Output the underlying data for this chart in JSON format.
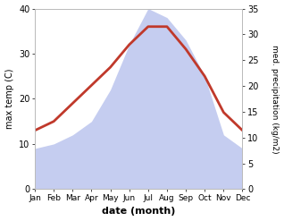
{
  "months": [
    "Jan",
    "Feb",
    "Mar",
    "Apr",
    "May",
    "Jun",
    "Jul",
    "Aug",
    "Sep",
    "Oct",
    "Nov",
    "Dec"
  ],
  "temperature": [
    13,
    15,
    19,
    23,
    27,
    32,
    36,
    36,
    31,
    25,
    17,
    13
  ],
  "precipitation": [
    9,
    10,
    12,
    15,
    22,
    32,
    40,
    38,
    33,
    25,
    12,
    9
  ],
  "temp_color": "#c0392b",
  "precip_fill_color": "#c5cdf0",
  "bg_color": "#ffffff",
  "temp_ylim": [
    0,
    40
  ],
  "precip_ylim": [
    0,
    35
  ],
  "temp_yticks": [
    0,
    10,
    20,
    30,
    40
  ],
  "precip_yticks": [
    0,
    5,
    10,
    15,
    20,
    25,
    30,
    35
  ],
  "ylabel_left": "max temp (C)",
  "ylabel_right": "med. precipitation (kg/m2)",
  "xlabel": "date (month)",
  "temp_linewidth": 2.0
}
